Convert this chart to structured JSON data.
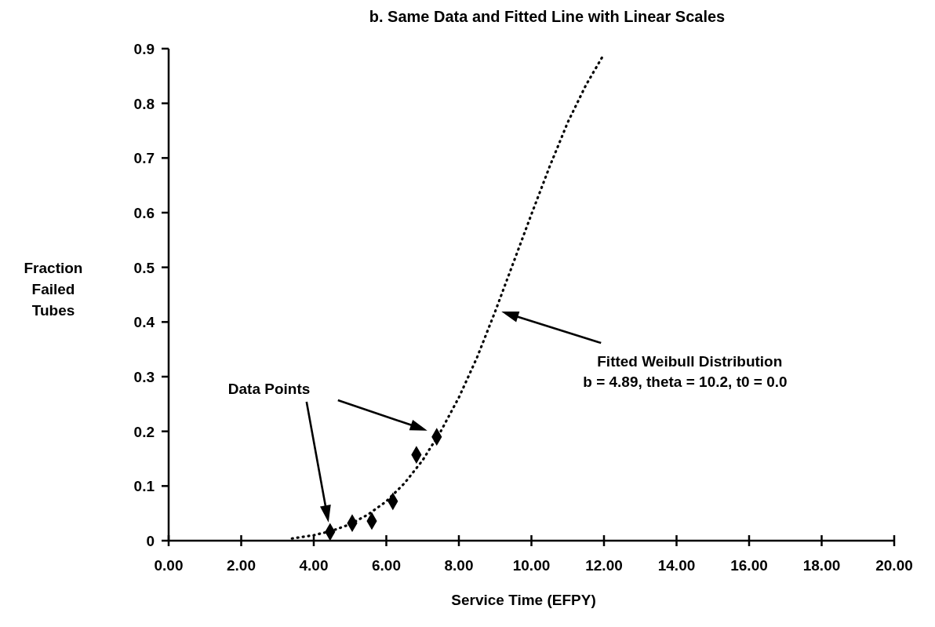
{
  "chart_data": {
    "type": "scatter",
    "title": "b.  Same Data and Fitted Line with Linear Scales",
    "xlabel": "Service Time (EFPY)",
    "ylabel": "Fraction Failed Tubes",
    "xlim": [
      0,
      20
    ],
    "ylim": [
      0,
      0.9
    ],
    "xticks": [
      {
        "value": 0,
        "label": "0.00"
      },
      {
        "value": 2,
        "label": "2.00"
      },
      {
        "value": 4,
        "label": "4.00"
      },
      {
        "value": 6,
        "label": "6.00"
      },
      {
        "value": 8,
        "label": "8.00"
      },
      {
        "value": 10,
        "label": "10.00"
      },
      {
        "value": 12,
        "label": "12.00"
      },
      {
        "value": 14,
        "label": "14.00"
      },
      {
        "value": 16,
        "label": "16.00"
      },
      {
        "value": 18,
        "label": "18.00"
      },
      {
        "value": 20,
        "label": "20.00"
      }
    ],
    "yticks": [
      0,
      0.1,
      0.2,
      0.3,
      0.4,
      0.5,
      0.6,
      0.7,
      0.8,
      0.9
    ],
    "grid": false,
    "series": [
      {
        "color": "#000000",
        "marker": "diamond",
        "x": [
          4.45,
          5.06,
          5.6,
          6.18,
          6.83,
          7.39
        ],
        "values": [
          0.016,
          0.032,
          0.036,
          0.072,
          0.157,
          0.19
        ]
      },
      {
        "type": "line",
        "color": "#000000",
        "marker": "none",
        "line_style": "dotted",
        "x": [
          3.4,
          4,
          4.5,
          5,
          5.5,
          6,
          6.5,
          7,
          7.5,
          8,
          8.5,
          9,
          9.5,
          10,
          10.5,
          11,
          11.5,
          12
        ],
        "values": [
          0.004,
          0.01,
          0.018,
          0.03,
          0.048,
          0.072,
          0.105,
          0.147,
          0.2,
          0.262,
          0.335,
          0.419,
          0.508,
          0.597,
          0.684,
          0.765,
          0.833,
          0.89
        ]
      }
    ],
    "annotations": [
      "Data Points",
      "Fitted Weibull Distribution",
      "b = 4.89, theta = 10.2, t0 = 0.0"
    ]
  }
}
